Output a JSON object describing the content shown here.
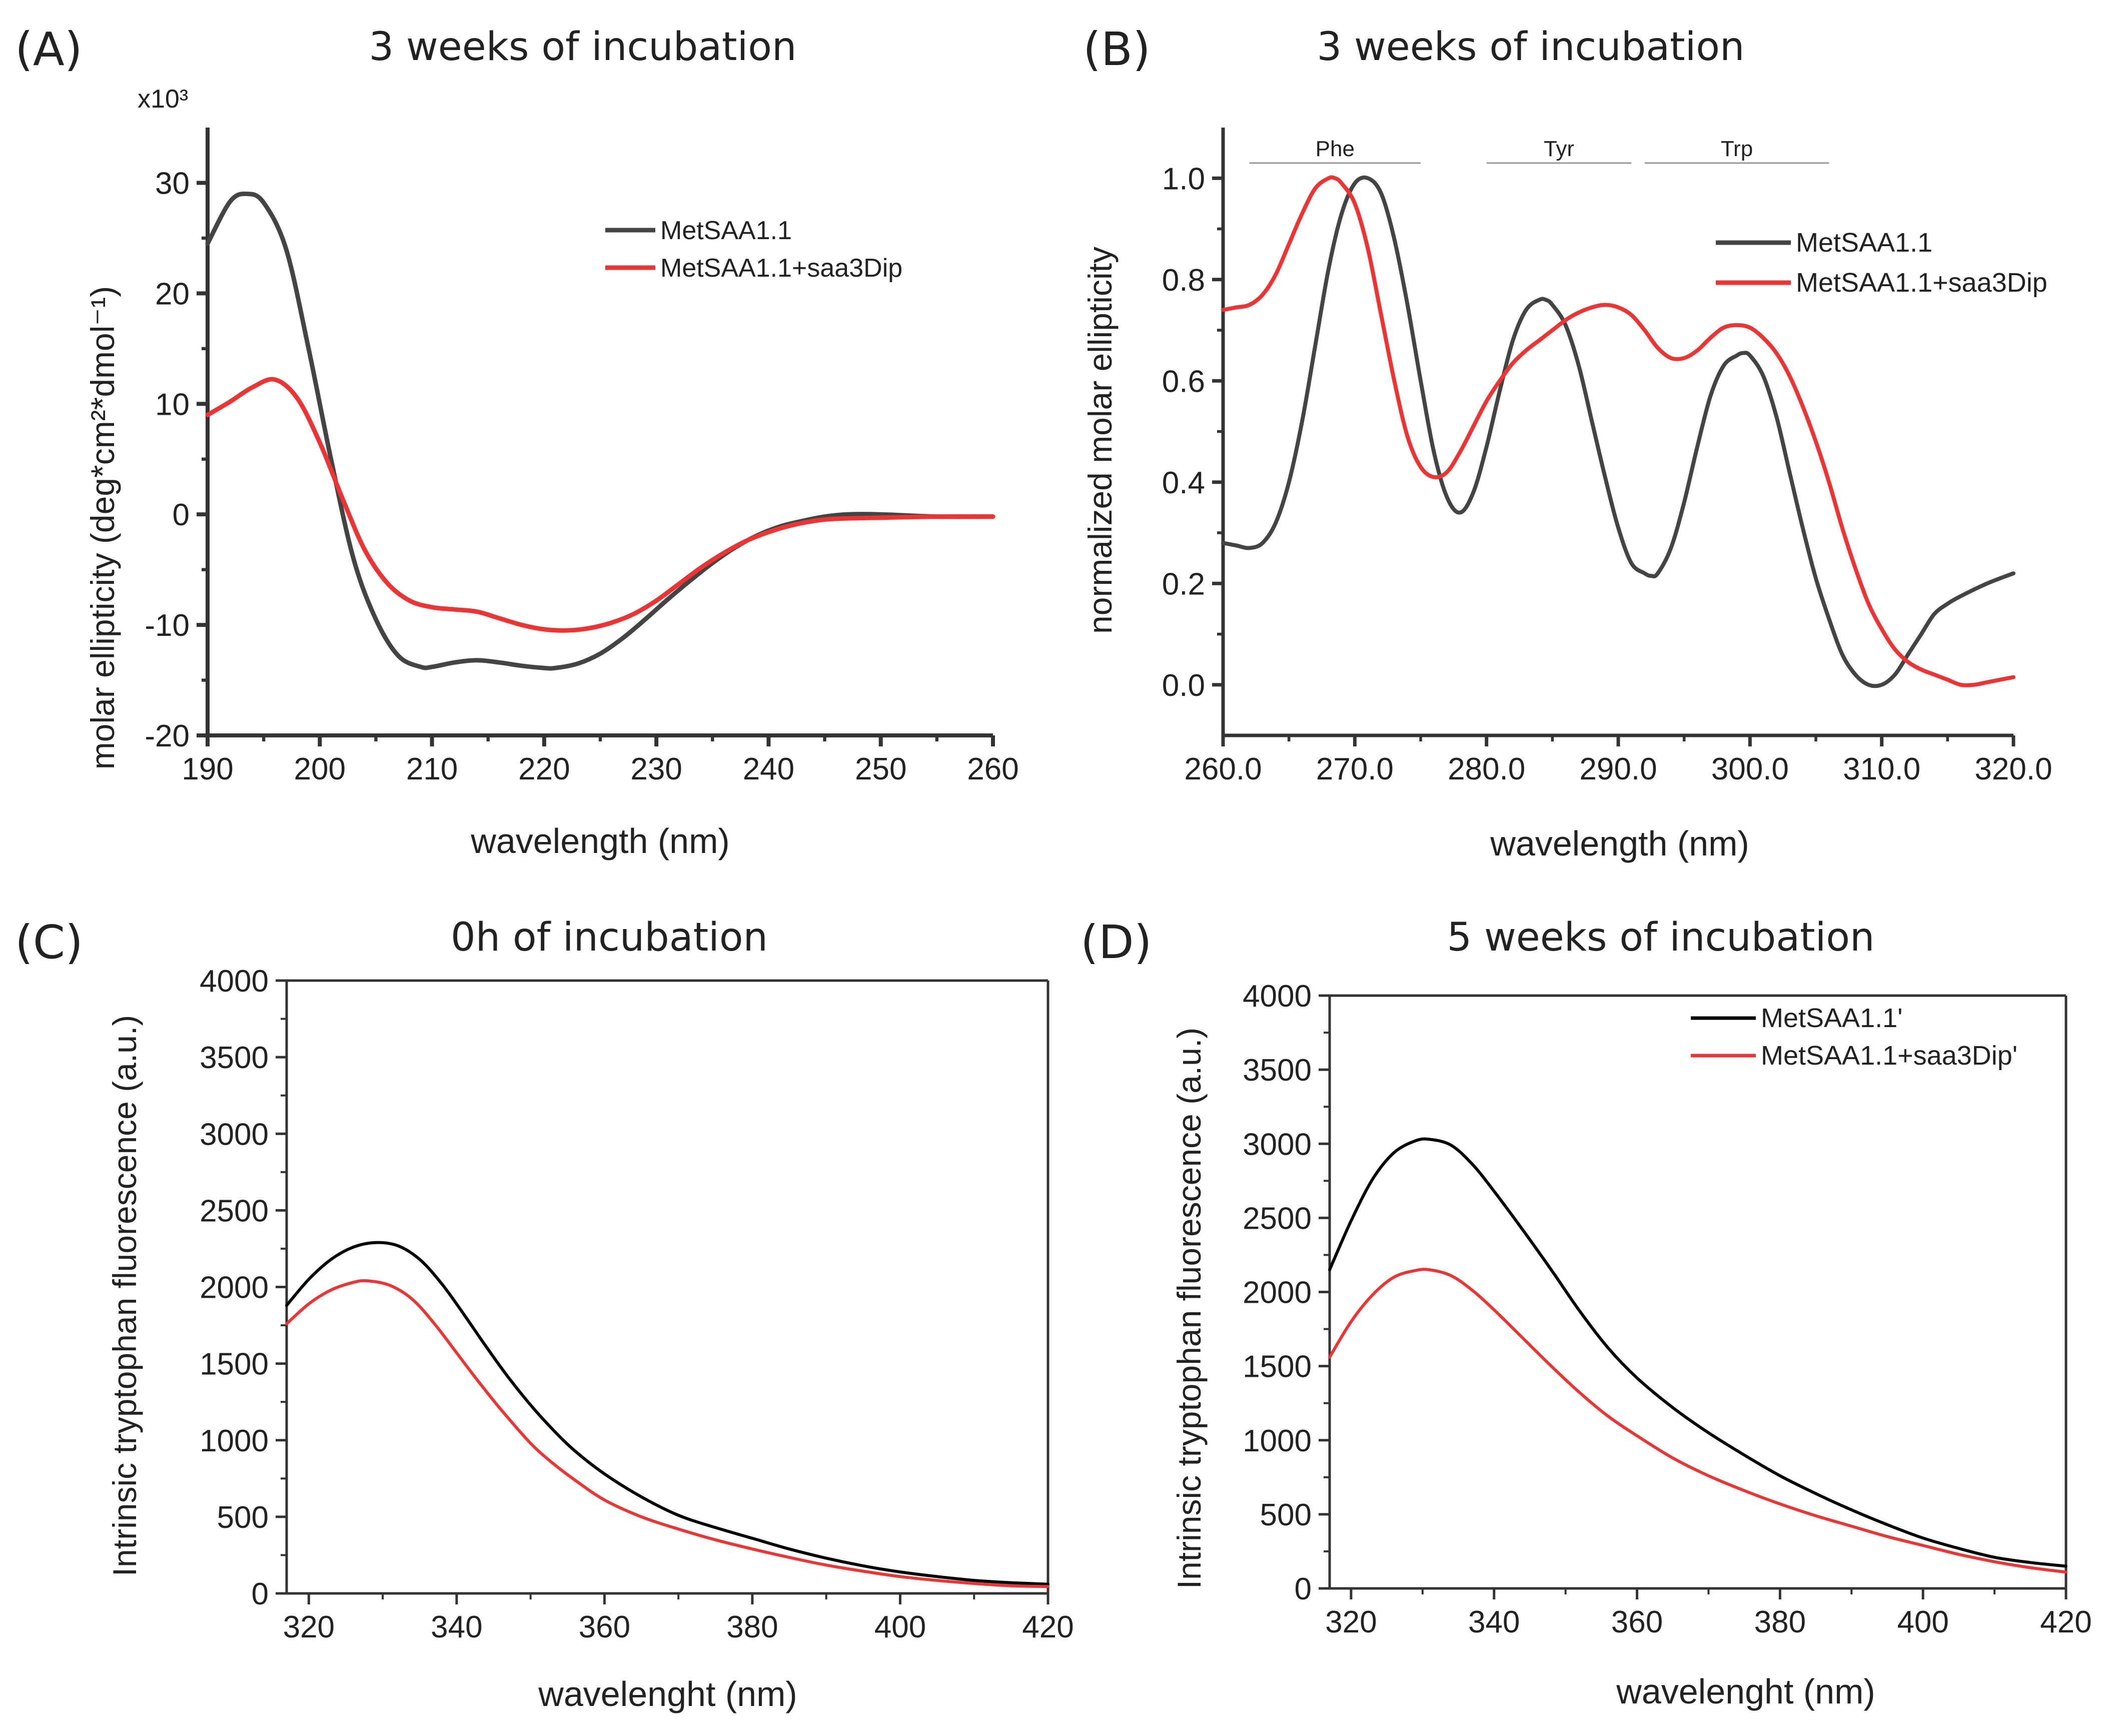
{
  "figure": {
    "panels": [
      "(A)",
      "(B)",
      "(C)",
      "(D)"
    ]
  },
  "colors": {
    "series_dark": "#444444",
    "series_black": "#000000",
    "series_red": "#ee3333"
  },
  "chart_data": [
    {
      "id": "A",
      "label": "(A)",
      "type": "line",
      "title": "3 weeks of incubation",
      "xlabel": "wavelength (nm)",
      "ylabel": "molar ellipticity (deg*cm²*dmol⁻¹)",
      "y_multiplier": "x10³",
      "xlim": [
        190,
        260
      ],
      "ylim": [
        -20,
        35
      ],
      "xticks": [
        190,
        200,
        210,
        220,
        230,
        240,
        250,
        260
      ],
      "yticks": [
        -20,
        -10,
        0,
        10,
        20,
        30
      ],
      "legend_position": "top-right",
      "series": [
        {
          "name": "MetSAA1.1",
          "color": "#444444",
          "x": [
            190,
            192,
            193.5,
            195,
            197,
            199,
            201,
            203,
            205,
            207,
            209,
            210,
            212,
            214,
            216,
            218,
            220,
            221,
            223,
            225,
            227,
            229,
            231,
            233,
            235,
            237,
            239,
            241,
            243,
            245,
            247,
            250,
            255,
            260
          ],
          "y": [
            24.5,
            28.3,
            29.0,
            28.2,
            24.0,
            15.0,
            5.0,
            -4.0,
            -9.5,
            -12.8,
            -13.8,
            -13.8,
            -13.4,
            -13.2,
            -13.4,
            -13.7,
            -13.9,
            -13.9,
            -13.5,
            -12.6,
            -11.2,
            -9.5,
            -7.7,
            -6.0,
            -4.4,
            -3.0,
            -1.9,
            -1.1,
            -0.6,
            -0.2,
            0,
            0,
            -0.2,
            -0.2
          ]
        },
        {
          "name": "MetSAA1.1+saa3Dip",
          "color": "#ee3333",
          "x": [
            190,
            192,
            194,
            196,
            198,
            200,
            202,
            204,
            206,
            208,
            210,
            212,
            214,
            216,
            218,
            220,
            222,
            224,
            226,
            228,
            230,
            232,
            234,
            236,
            238,
            240,
            242,
            244,
            246,
            250,
            255,
            260
          ],
          "y": [
            9.0,
            10.2,
            11.5,
            12.2,
            10.5,
            6.5,
            1.5,
            -3.2,
            -6.2,
            -7.8,
            -8.4,
            -8.6,
            -8.8,
            -9.4,
            -10.0,
            -10.4,
            -10.5,
            -10.3,
            -9.8,
            -9.0,
            -7.8,
            -6.3,
            -4.8,
            -3.5,
            -2.4,
            -1.6,
            -1.0,
            -0.6,
            -0.4,
            -0.3,
            -0.2,
            -0.2
          ]
        }
      ]
    },
    {
      "id": "B",
      "label": "(B)",
      "type": "line",
      "title": "3 weeks of incubation",
      "xlabel": "wavelength (nm)",
      "ylabel": "normalized molar ellipticity",
      "xlim": [
        260,
        320
      ],
      "ylim": [
        -0.1,
        1.1
      ],
      "xticks": [
        260,
        270,
        280,
        290,
        300,
        310,
        320
      ],
      "yticks": [
        0.0,
        0.2,
        0.4,
        0.6,
        0.8,
        1.0
      ],
      "legend_position": "top-right",
      "annotations": [
        {
          "text": "Phe",
          "x_start": 262,
          "x_end": 275,
          "y": 1.03
        },
        {
          "text": "Tyr",
          "x_start": 280,
          "x_end": 291,
          "y": 1.03
        },
        {
          "text": "Trp",
          "x_start": 292,
          "x_end": 306,
          "y": 1.03
        }
      ],
      "series": [
        {
          "name": "MetSAA1.1",
          "color": "#444444",
          "x": [
            260,
            261,
            262,
            263,
            264,
            265,
            266,
            267,
            268,
            269,
            270,
            271,
            272,
            273,
            274,
            275,
            276,
            277,
            278,
            279,
            280,
            281,
            282,
            283,
            284,
            284.5,
            285,
            286,
            287,
            288,
            289,
            290,
            291,
            292,
            292.5,
            293,
            294,
            295,
            296,
            297,
            298,
            299,
            299.5,
            300,
            301,
            302,
            303,
            304,
            305,
            306,
            307,
            308,
            309,
            310,
            311,
            312,
            313,
            314,
            315,
            316,
            318,
            320
          ],
          "y": [
            0.28,
            0.275,
            0.27,
            0.28,
            0.32,
            0.4,
            0.52,
            0.67,
            0.82,
            0.93,
            0.99,
            1.0,
            0.97,
            0.88,
            0.75,
            0.6,
            0.46,
            0.37,
            0.34,
            0.38,
            0.47,
            0.58,
            0.68,
            0.74,
            0.76,
            0.76,
            0.75,
            0.71,
            0.63,
            0.52,
            0.41,
            0.31,
            0.24,
            0.22,
            0.215,
            0.22,
            0.27,
            0.36,
            0.47,
            0.57,
            0.63,
            0.65,
            0.655,
            0.65,
            0.61,
            0.53,
            0.42,
            0.31,
            0.21,
            0.13,
            0.06,
            0.02,
            0.0,
            0.0,
            0.02,
            0.06,
            0.1,
            0.14,
            0.16,
            0.175,
            0.2,
            0.22
          ]
        },
        {
          "name": "MetSAA1.1+saa3Dip",
          "color": "#ee3333",
          "x": [
            260,
            261,
            262,
            263,
            264,
            265,
            266,
            267,
            268,
            268.5,
            269,
            270,
            271,
            272,
            273,
            274,
            275,
            276,
            277,
            278,
            279,
            280,
            281,
            282,
            283,
            284,
            285,
            286,
            287,
            288,
            289,
            290,
            291,
            292,
            293,
            294,
            295,
            296,
            297,
            298,
            299,
            300,
            301,
            302,
            303,
            304,
            305,
            306,
            307,
            308,
            309,
            310,
            311,
            312,
            313,
            314,
            315,
            316,
            317,
            318,
            319,
            320
          ],
          "y": [
            0.74,
            0.745,
            0.75,
            0.77,
            0.81,
            0.87,
            0.93,
            0.98,
            1.0,
            1.0,
            0.99,
            0.95,
            0.86,
            0.73,
            0.6,
            0.49,
            0.43,
            0.41,
            0.42,
            0.46,
            0.51,
            0.56,
            0.6,
            0.635,
            0.66,
            0.68,
            0.7,
            0.72,
            0.735,
            0.745,
            0.75,
            0.745,
            0.73,
            0.7,
            0.665,
            0.645,
            0.645,
            0.66,
            0.685,
            0.705,
            0.71,
            0.705,
            0.685,
            0.655,
            0.61,
            0.55,
            0.48,
            0.4,
            0.31,
            0.23,
            0.16,
            0.11,
            0.07,
            0.045,
            0.03,
            0.02,
            0.01,
            0.0,
            0.0,
            0.005,
            0.01,
            0.015
          ]
        }
      ]
    },
    {
      "id": "C",
      "label": "(C)",
      "type": "line",
      "title": "0h of incubation",
      "xlabel": "wavelenght (nm)",
      "ylabel": "Intrinsic tryptophan fluorescence (a.u.)",
      "xlim": [
        317,
        420
      ],
      "ylim": [
        0,
        4000
      ],
      "xticks": [
        320,
        340,
        360,
        380,
        400,
        420
      ],
      "yticks": [
        0,
        500,
        1000,
        1500,
        2000,
        2500,
        3000,
        3500,
        4000
      ],
      "series": [
        {
          "name": "MetSAA1.1",
          "color": "#000000",
          "x": [
            317,
            320,
            323,
            326,
            329,
            332,
            335,
            338,
            341,
            344,
            347,
            350,
            353,
            356,
            360,
            365,
            370,
            375,
            380,
            385,
            390,
            395,
            400,
            405,
            410,
            415,
            420
          ],
          "y": [
            1880,
            2050,
            2180,
            2260,
            2290,
            2270,
            2180,
            2020,
            1820,
            1610,
            1410,
            1230,
            1070,
            930,
            780,
            630,
            510,
            430,
            360,
            290,
            230,
            180,
            140,
            110,
            85,
            70,
            60
          ]
        },
        {
          "name": "MetSAA1.1+saa3Dip",
          "color": "#ee3333",
          "x": [
            317,
            320,
            323,
            326,
            328,
            331,
            334,
            337,
            340,
            343,
            346,
            350,
            353,
            356,
            360,
            365,
            370,
            375,
            380,
            385,
            390,
            395,
            400,
            405,
            410,
            415,
            420
          ],
          "y": [
            1760,
            1890,
            1980,
            2030,
            2040,
            2010,
            1920,
            1760,
            1570,
            1380,
            1200,
            980,
            850,
            740,
            610,
            500,
            420,
            350,
            290,
            235,
            185,
            145,
            110,
            85,
            65,
            50,
            45
          ]
        }
      ]
    },
    {
      "id": "D",
      "label": "(D)",
      "type": "line",
      "title": "5 weeks of incubation",
      "xlabel": "wavelenght (nm)",
      "ylabel": "Intrinsic tryptophan fluorescence (a.u.)",
      "xlim": [
        317,
        420
      ],
      "ylim": [
        0,
        4000
      ],
      "xticks": [
        320,
        340,
        360,
        380,
        400,
        420
      ],
      "yticks": [
        0,
        500,
        1000,
        1500,
        2000,
        2500,
        3000,
        3500,
        4000
      ],
      "legend_position": "top-right",
      "series": [
        {
          "name": "MetSAA1.1'",
          "color": "#000000",
          "x": [
            317,
            320,
            323,
            326,
            329,
            331,
            334,
            337,
            340,
            344,
            348,
            352,
            356,
            360,
            365,
            370,
            375,
            380,
            385,
            390,
            395,
            400,
            405,
            410,
            415,
            420
          ],
          "y": [
            2150,
            2480,
            2760,
            2940,
            3020,
            3030,
            2990,
            2860,
            2680,
            2420,
            2150,
            1870,
            1620,
            1420,
            1220,
            1050,
            900,
            760,
            640,
            530,
            430,
            340,
            270,
            210,
            175,
            150
          ]
        },
        {
          "name": "MetSAA1.1+saa3Dip'",
          "color": "#ee3333",
          "x": [
            317,
            320,
            323,
            326,
            329,
            331,
            334,
            337,
            340,
            344,
            348,
            352,
            356,
            360,
            365,
            370,
            375,
            380,
            385,
            390,
            395,
            400,
            405,
            410,
            415,
            420
          ],
          "y": [
            1560,
            1800,
            1980,
            2100,
            2145,
            2150,
            2110,
            2010,
            1880,
            1690,
            1500,
            1320,
            1160,
            1030,
            880,
            760,
            660,
            570,
            490,
            420,
            350,
            290,
            230,
            180,
            140,
            110
          ]
        }
      ]
    }
  ]
}
